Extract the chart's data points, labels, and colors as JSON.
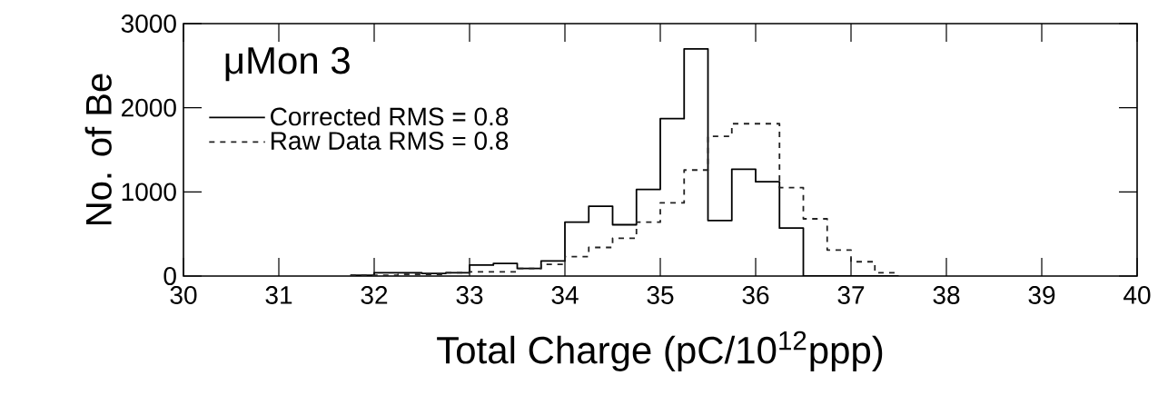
{
  "chart_data": {
    "type": "histogram",
    "xlabel": "Total Charge (pC/10$^{12}$ppp)",
    "ylabel": "No. of Be",
    "bins": [
      31.75,
      32.0,
      32.25,
      32.5,
      32.75,
      33.0,
      33.25,
      33.5,
      33.75,
      34.0,
      34.25,
      34.5,
      34.75,
      35.0,
      35.25,
      35.5,
      35.75,
      36.0,
      36.25,
      36.5,
      36.75,
      37.0,
      37.25,
      37.5
    ],
    "series": [
      {
        "name": "Corrected RMS = 0.8",
        "color": "#000000",
        "line_style": "solid",
        "values": [
          10,
          40,
          40,
          30,
          40,
          130,
          150,
          90,
          180,
          640,
          830,
          610,
          1030,
          1870,
          2700,
          660,
          1270,
          1120,
          570,
          0,
          0,
          0,
          0
        ]
      },
      {
        "name": "Raw Data RMS = 0.8",
        "color": "#222222",
        "line_style": "dashed",
        "values": [
          10,
          10,
          20,
          20,
          40,
          50,
          50,
          90,
          140,
          230,
          340,
          450,
          640,
          870,
          1260,
          1660,
          1810,
          1810,
          1050,
          680,
          310,
          170,
          40
        ]
      }
    ],
    "xlim": [
      30,
      40
    ],
    "ylim": [
      0,
      3000
    ],
    "xticks": [
      30,
      31,
      32,
      33,
      34,
      35,
      36,
      37,
      38,
      39,
      40
    ],
    "yticks": [
      0,
      1000,
      2000,
      3000
    ],
    "legend": "top left",
    "grid": false,
    "annotations": [
      "μMon 3"
    ]
  }
}
